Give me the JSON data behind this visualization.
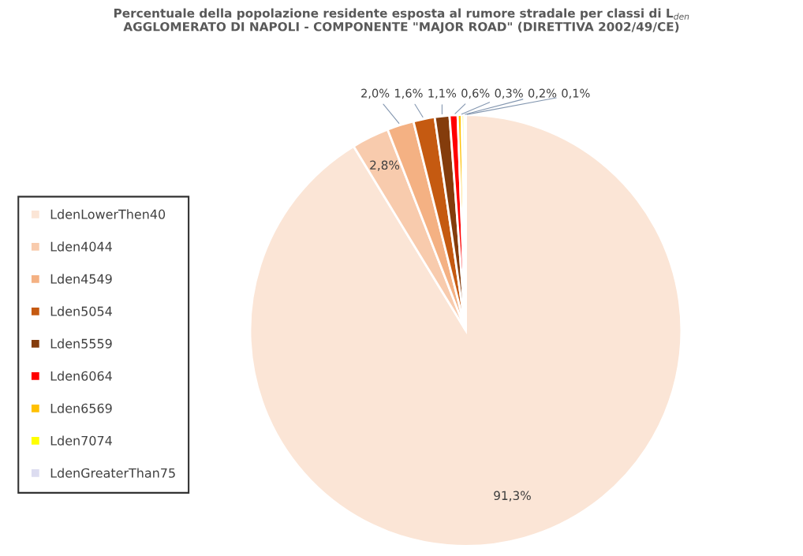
{
  "chart_data": {
    "type": "pie",
    "title": "Percentuale della popolazione residente esposta al rumore stradale per classi di L$_{den}$\nAGGLOMERATO DI NAPOLI - COMPONENTE \"MAJOR ROAD\" (DIRETTIVA 2002/49/CE)",
    "categories": [
      "LdenLowerThen40",
      "Lden4044",
      "Lden4549",
      "Lden5054",
      "Lden5559",
      "Lden6064",
      "Lden6569",
      "Lden7074",
      "LdenGreaterThan75"
    ],
    "values": [
      91.3,
      2.8,
      2.0,
      1.6,
      1.1,
      0.6,
      0.3,
      0.2,
      0.1
    ],
    "value_labels": [
      "91,3%",
      "2,8%",
      "2,0%",
      "1,6%",
      "1,1%",
      "0,6%",
      "0,3%",
      "0,2%",
      "0,1%"
    ],
    "colors": [
      "#fbe5d6",
      "#f8cbad",
      "#f4b183",
      "#c55a11",
      "#843c0c",
      "#ff0000",
      "#ffc000",
      "#ffff00",
      "#dcdcf0"
    ],
    "legend": "left"
  }
}
